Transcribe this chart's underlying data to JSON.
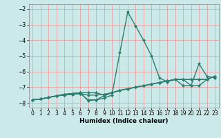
{
  "title": "",
  "xlabel": "Humidex (Indice chaleur)",
  "x": [
    0,
    1,
    2,
    3,
    4,
    5,
    6,
    7,
    8,
    9,
    10,
    11,
    12,
    13,
    14,
    15,
    16,
    17,
    18,
    19,
    20,
    21,
    22,
    23
  ],
  "line1": [
    -7.8,
    -7.75,
    -7.65,
    -7.55,
    -7.5,
    -7.45,
    -7.4,
    -7.8,
    -7.8,
    -7.55,
    -7.35,
    -7.2,
    -7.1,
    -7.0,
    -6.9,
    -6.8,
    -6.7,
    -6.6,
    -6.5,
    -6.5,
    -6.9,
    -6.9,
    -6.5,
    -6.3
  ],
  "line2": [
    -7.8,
    -7.75,
    -7.65,
    -7.55,
    -7.45,
    -7.4,
    -7.35,
    -7.85,
    -7.8,
    -7.7,
    -7.5,
    -4.8,
    -2.2,
    -3.1,
    -4.0,
    -5.0,
    -6.4,
    -6.65,
    -6.5,
    -6.9,
    -6.9,
    -5.5,
    -6.3,
    -6.4
  ],
  "line3": [
    -7.8,
    -7.75,
    -7.65,
    -7.55,
    -7.5,
    -7.45,
    -7.4,
    -7.5,
    -7.5,
    -7.45,
    -7.35,
    -7.2,
    -7.1,
    -7.0,
    -6.9,
    -6.8,
    -6.7,
    -6.6,
    -6.5,
    -6.5,
    -6.5,
    -6.5,
    -6.5,
    -6.3
  ],
  "line4": [
    -7.8,
    -7.75,
    -7.65,
    -7.55,
    -7.45,
    -7.4,
    -7.35,
    -7.35,
    -7.35,
    -7.5,
    -7.35,
    -7.2,
    -7.1,
    -7.0,
    -6.9,
    -6.8,
    -6.7,
    -6.6,
    -6.5,
    -6.5,
    -6.5,
    -6.5,
    -6.5,
    -6.3
  ],
  "color": "#2e7d6e",
  "bg_color": "#cce9e9",
  "grid_color": "#e8a0a0",
  "ylim": [
    -8.3,
    -1.7
  ],
  "xlim": [
    -0.5,
    23.5
  ],
  "yticks": [
    -8,
    -7,
    -6,
    -5,
    -4,
    -3,
    -2
  ],
  "xticks": [
    0,
    1,
    2,
    3,
    4,
    5,
    6,
    7,
    8,
    9,
    10,
    11,
    12,
    13,
    14,
    15,
    16,
    17,
    18,
    19,
    20,
    21,
    22,
    23
  ],
  "marker": "D",
  "markersize": 2.0,
  "linewidth": 1.0,
  "tick_fontsize": 5.5,
  "xlabel_fontsize": 6.5
}
